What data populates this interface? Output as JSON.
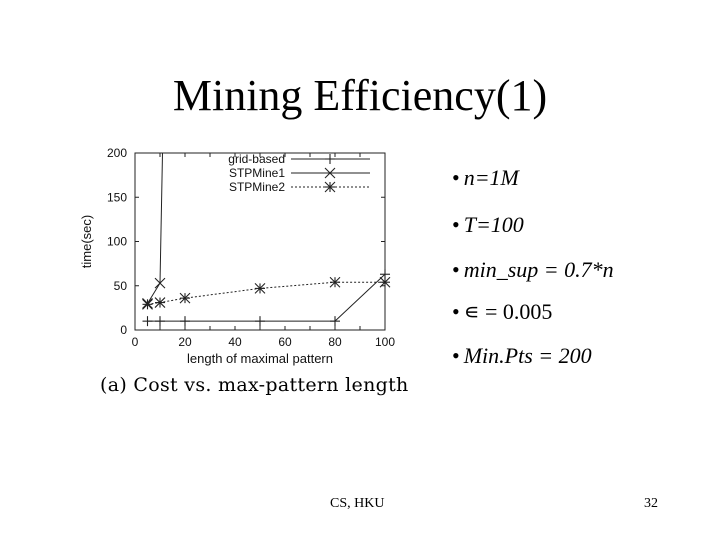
{
  "slide": {
    "title": "Mining Efficiency(1)",
    "caption": "(a) Cost vs. max-pattern length",
    "bullets": [
      "n=1M",
      "T=100",
      "min_sup = 0.7*n",
      "∊ = 0.005",
      "Min.Pts = 200"
    ],
    "footer_left": "CS, HKU",
    "footer_right": "32"
  },
  "chart_data": {
    "type": "line",
    "title": "",
    "xlabel": "length of maximal pattern",
    "ylabel": "time(sec)",
    "xlim": [
      0,
      100
    ],
    "ylim": [
      0,
      200
    ],
    "x_ticks": [
      0,
      10,
      20,
      30,
      40,
      50,
      60,
      70,
      80,
      90,
      100
    ],
    "y_ticks": [
      0,
      50,
      100,
      150,
      200
    ],
    "grid": false,
    "legend_position": "top-right",
    "series": [
      {
        "name": "grid-based",
        "marker": "plus",
        "line_style": "solid",
        "x": [
          5,
          10,
          20,
          50,
          80,
          100
        ],
        "y": [
          10,
          10,
          10,
          10,
          10,
          63
        ]
      },
      {
        "name": "STPMine1",
        "marker": "x",
        "line_style": "solid",
        "x": [
          5,
          10,
          11
        ],
        "y": [
          30,
          53,
          200
        ]
      },
      {
        "name": "STPMine2",
        "marker": "star",
        "line_style": "dotted",
        "x": [
          5,
          10,
          20,
          50,
          80,
          100
        ],
        "y": [
          29,
          31,
          36,
          47,
          54,
          54
        ]
      }
    ]
  }
}
